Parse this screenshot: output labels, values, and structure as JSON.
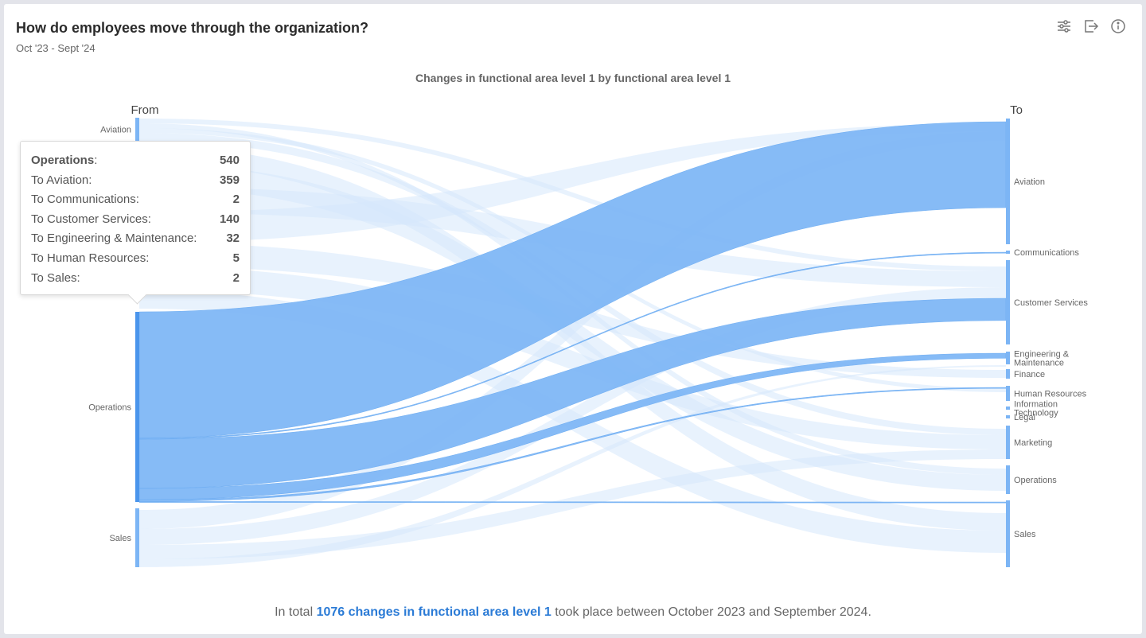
{
  "header": {
    "title": "How do employees move through the organization?",
    "subtitle": "Oct '23 - Sept '24",
    "icons": [
      "sliders-icon",
      "export-icon",
      "info-icon"
    ]
  },
  "colors": {
    "accent": "#7cb5f5",
    "node": "#5fa4f0",
    "faded_link": "#d6e7fb",
    "link_text": "#2b7bd6"
  },
  "chart_data": {
    "type": "sankey",
    "title": "Changes in functional area level 1 by functional area level 1",
    "source_header": "From",
    "target_header": "To",
    "sources": [
      "Aviation",
      "Operations",
      "Sales"
    ],
    "targets": [
      "Aviation",
      "Communications",
      "Customer Services",
      "Engineering & Maintenance",
      "Finance",
      "Human Resources",
      "Information Technology",
      "Legal",
      "Marketing",
      "Operations",
      "Sales"
    ],
    "highlighted_source": "Operations",
    "links": [
      {
        "from": "Operations",
        "to": "Aviation",
        "value": 359
      },
      {
        "from": "Operations",
        "to": "Communications",
        "value": 2
      },
      {
        "from": "Operations",
        "to": "Customer Services",
        "value": 140
      },
      {
        "from": "Operations",
        "to": "Engineering & Maintenance",
        "value": 32
      },
      {
        "from": "Operations",
        "to": "Human Resources",
        "value": 5
      },
      {
        "from": "Operations",
        "to": "Sales",
        "value": 2
      }
    ]
  },
  "tooltip": {
    "title": "Operations",
    "total": "540",
    "rows": [
      {
        "label": "To Aviation:",
        "value": "359"
      },
      {
        "label": "To Communications:",
        "value": "2"
      },
      {
        "label": "To Customer Services:",
        "value": "140"
      },
      {
        "label": "To Engineering & Maintenance:",
        "value": "32"
      },
      {
        "label": "To Human Resources:",
        "value": "5"
      },
      {
        "label": "To Sales:",
        "value": "2"
      }
    ]
  },
  "footer": {
    "prefix": "In total ",
    "highlight": "1076 changes in functional area level 1",
    "suffix": " took place between October 2023 and September 2024."
  }
}
